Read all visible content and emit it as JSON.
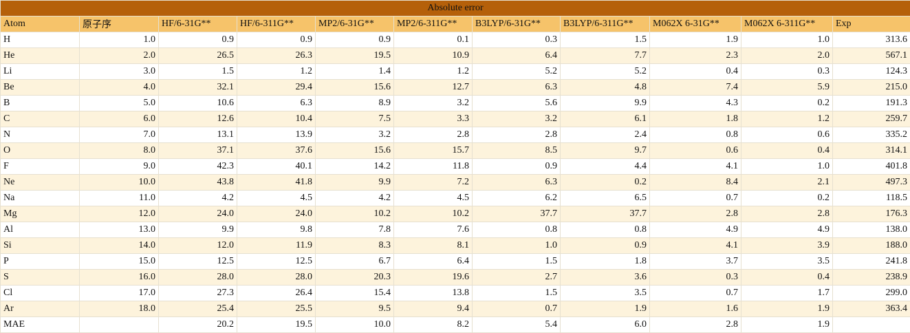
{
  "table": {
    "title": "Absolute error",
    "columns": [
      "Atom",
      "原子序",
      "HF/6-31G**",
      "HF/6-311G**",
      "MP2/6-31G**",
      "MP2/6-311G**",
      "B3LYP/6-31G**",
      "B3LYP/6-311G**",
      "M062X 6-31G**",
      "M062X 6-311G**",
      "Exp"
    ],
    "rows": [
      [
        "H",
        "1.0",
        "0.9",
        "0.9",
        "0.9",
        "0.1",
        "0.3",
        "1.5",
        "1.9",
        "1.0",
        "313.6"
      ],
      [
        "He",
        "2.0",
        "26.5",
        "26.3",
        "19.5",
        "10.9",
        "6.4",
        "7.7",
        "2.3",
        "2.0",
        "567.1"
      ],
      [
        "Li",
        "3.0",
        "1.5",
        "1.2",
        "1.4",
        "1.2",
        "5.2",
        "5.2",
        "0.4",
        "0.3",
        "124.3"
      ],
      [
        "Be",
        "4.0",
        "32.1",
        "29.4",
        "15.6",
        "12.7",
        "6.3",
        "4.8",
        "7.4",
        "5.9",
        "215.0"
      ],
      [
        "B",
        "5.0",
        "10.6",
        "6.3",
        "8.9",
        "3.2",
        "5.6",
        "9.9",
        "4.3",
        "0.2",
        "191.3"
      ],
      [
        "C",
        "6.0",
        "12.6",
        "10.4",
        "7.5",
        "3.3",
        "3.2",
        "6.1",
        "1.8",
        "1.2",
        "259.7"
      ],
      [
        "N",
        "7.0",
        "13.1",
        "13.9",
        "3.2",
        "2.8",
        "2.8",
        "2.4",
        "0.8",
        "0.6",
        "335.2"
      ],
      [
        "O",
        "8.0",
        "37.1",
        "37.6",
        "15.6",
        "15.7",
        "8.5",
        "9.7",
        "0.6",
        "0.4",
        "314.1"
      ],
      [
        "F",
        "9.0",
        "42.3",
        "40.1",
        "14.2",
        "11.8",
        "0.9",
        "4.4",
        "4.1",
        "1.0",
        "401.8"
      ],
      [
        "Ne",
        "10.0",
        "43.8",
        "41.8",
        "9.9",
        "7.2",
        "6.3",
        "0.2",
        "8.4",
        "2.1",
        "497.3"
      ],
      [
        "Na",
        "11.0",
        "4.2",
        "4.5",
        "4.2",
        "4.5",
        "6.2",
        "6.5",
        "0.7",
        "0.2",
        "118.5"
      ],
      [
        "Mg",
        "12.0",
        "24.0",
        "24.0",
        "10.2",
        "10.2",
        "37.7",
        "37.7",
        "2.8",
        "2.8",
        "176.3"
      ],
      [
        "Al",
        "13.0",
        "9.9",
        "9.8",
        "7.8",
        "7.6",
        "0.8",
        "0.8",
        "4.9",
        "4.9",
        "138.0"
      ],
      [
        "Si",
        "14.0",
        "12.0",
        "11.9",
        "8.3",
        "8.1",
        "1.0",
        "0.9",
        "4.1",
        "3.9",
        "188.0"
      ],
      [
        "P",
        "15.0",
        "12.5",
        "12.5",
        "6.7",
        "6.4",
        "1.5",
        "1.8",
        "3.7",
        "3.5",
        "241.8"
      ],
      [
        "S",
        "16.0",
        "28.0",
        "28.0",
        "20.3",
        "19.6",
        "2.7",
        "3.6",
        "0.3",
        "0.4",
        "238.9"
      ],
      [
        "Cl",
        "17.0",
        "27.3",
        "26.4",
        "15.4",
        "13.8",
        "1.5",
        "3.5",
        "0.7",
        "1.7",
        "299.0"
      ],
      [
        "Ar",
        "18.0",
        "25.4",
        "25.5",
        "9.5",
        "9.4",
        "0.7",
        "1.9",
        "1.6",
        "1.9",
        "363.4"
      ],
      [
        "MAE",
        "",
        "20.2",
        "19.5",
        "10.0",
        "8.2",
        "5.4",
        "6.0",
        "2.8",
        "1.9"
      ]
    ]
  }
}
